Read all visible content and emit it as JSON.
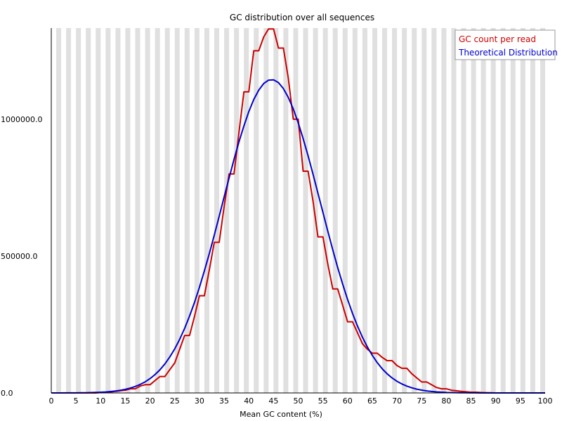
{
  "chart_data": {
    "type": "line",
    "title": "GC distribution over all sequences",
    "xlabel": "Mean GC content (%)",
    "ylabel": "",
    "xlim": [
      0,
      100
    ],
    "ylim": [
      0,
      1333000
    ],
    "x_ticks": [
      "0",
      "5",
      "10",
      "15",
      "20",
      "25",
      "30",
      "35",
      "40",
      "45",
      "50",
      "55",
      "60",
      "65",
      "70",
      "75",
      "80",
      "85",
      "90",
      "95",
      "100"
    ],
    "y_ticks": [
      {
        "value": 0,
        "label": "0.0"
      },
      {
        "value": 500000,
        "label": "500000.0"
      },
      {
        "value": 1000000,
        "label": "1000000.0"
      }
    ],
    "grid": "alternating vertical bands per 1% GC",
    "legend_position": "top-right",
    "series": [
      {
        "name": "GC count per read",
        "color": "#cc0000",
        "style": "step",
        "x": [
          0,
          1,
          2,
          3,
          4,
          5,
          6,
          7,
          8,
          9,
          10,
          11,
          12,
          13,
          14,
          15,
          16,
          17,
          18,
          19,
          20,
          21,
          22,
          23,
          24,
          25,
          26,
          27,
          28,
          29,
          30,
          31,
          32,
          33,
          34,
          35,
          36,
          37,
          38,
          39,
          40,
          41,
          42,
          43,
          44,
          45,
          46,
          47,
          48,
          49,
          50,
          51,
          52,
          53,
          54,
          55,
          56,
          57,
          58,
          59,
          60,
          61,
          62,
          63,
          64,
          65,
          66,
          67,
          68,
          69,
          70,
          71,
          72,
          73,
          74,
          75,
          76,
          77,
          78,
          79,
          80,
          81,
          82,
          83,
          84,
          85,
          86,
          87,
          88,
          89,
          90,
          91,
          92,
          93,
          94,
          95,
          96,
          97,
          98,
          99,
          100
        ],
        "values": [
          0,
          0,
          0,
          0,
          0,
          0,
          0,
          0,
          0,
          0,
          1500,
          2500,
          3500,
          6000,
          8000,
          10000,
          15000,
          15000,
          25000,
          30000,
          30000,
          45000,
          60000,
          60000,
          85000,
          110000,
          160000,
          210000,
          210000,
          280000,
          355000,
          355000,
          450000,
          550000,
          550000,
          680000,
          800000,
          800000,
          950000,
          1100000,
          1100000,
          1250000,
          1250000,
          1300000,
          1330000,
          1330000,
          1260000,
          1260000,
          1150000,
          1000000,
          1000000,
          810000,
          810000,
          700000,
          570000,
          570000,
          470000,
          380000,
          380000,
          320000,
          260000,
          260000,
          220000,
          180000,
          160000,
          145000,
          145000,
          130000,
          118000,
          118000,
          100000,
          90000,
          90000,
          70000,
          55000,
          40000,
          40000,
          30000,
          20000,
          15000,
          15000,
          10000,
          8000,
          6000,
          4000,
          2500,
          2500,
          1500,
          1000,
          500,
          0,
          0,
          0,
          0,
          0,
          0,
          0,
          0,
          0,
          0,
          0
        ]
      },
      {
        "name": "Theoretical Distribution",
        "color": "#0000cc",
        "style": "line",
        "mean": 44.6,
        "sd": 9.9,
        "peak": 1145000,
        "x": [],
        "values": []
      }
    ]
  }
}
